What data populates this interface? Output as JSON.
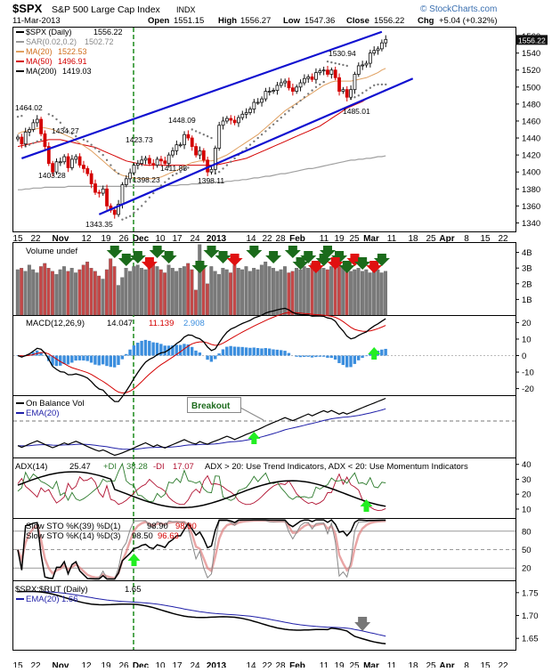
{
  "header": {
    "symbol": "$SPX",
    "name": "S&P 500 Large Cap Index",
    "exchange": "INDX",
    "credit": "© StockCharts.com",
    "date": "11-Mar-2013",
    "open_label": "Open",
    "open": "1551.15",
    "high_label": "High",
    "high": "1556.27",
    "low_label": "Low",
    "low": "1547.36",
    "close_label": "Close",
    "close": "1556.22",
    "chg_label": "Chg",
    "chg": "+5.04 (+0.32%)"
  },
  "colors": {
    "up": "#111111",
    "down": "#d40000",
    "channel": "#1010d0",
    "ma20": "#e0a060",
    "ma50": "#d40000",
    "ma200": "#a0a0a0",
    "vol_up": "#7a7a7a",
    "vol_down": "#c44848",
    "hist": "#3b8ede",
    "green": "#2e7d32",
    "bright_green": "#22ee22",
    "arrow_down": "#1b6b1b",
    "arrow_red": "#e01010",
    "ema_blue": "#1f1fa8",
    "dgreen": "#2b7a2b",
    "dred": "#b01030"
  },
  "chart_data": {
    "type": "line",
    "title": "$SPX S&P 500 Large Cap Index INDX",
    "x_axis_labels": [
      "15",
      "22",
      "Nov",
      "12",
      "19",
      "26",
      "Dec",
      "10",
      "17",
      "24",
      "2013",
      "14",
      "22",
      "28",
      "Feb",
      "11",
      "19",
      "25",
      "Mar",
      "11",
      "18",
      "25",
      "Apr",
      "8",
      "15",
      "22"
    ],
    "price_pane": {
      "legend": [
        {
          "label": "$SPX (Daily)",
          "value": "1556.22"
        },
        {
          "label": "SAR(0.02,0.2)",
          "value": "1502.72"
        },
        {
          "label": "MA(20)",
          "value": "1522.53"
        },
        {
          "label": "MA(50)",
          "value": "1496.91"
        },
        {
          "label": "MA(200)",
          "value": "1419.03"
        }
      ],
      "y_ticks": [
        1340,
        1360,
        1380,
        1400,
        1420,
        1440,
        1460,
        1480,
        1500,
        1520,
        1540,
        1560
      ],
      "ylim": [
        1330,
        1570
      ],
      "annotations": [
        "1464.02",
        "1434.27",
        "1403.28",
        "1343.35",
        "1423.73",
        "1398.23",
        "1411.88",
        "1448.09",
        "1398.11",
        "1530.94",
        "1485.01"
      ],
      "channel_upper": [
        [
          1,
          1416
        ],
        [
          94,
          1565
        ]
      ],
      "channel_lower": [
        [
          21,
          1350
        ],
        [
          102,
          1510
        ]
      ],
      "close": [
        1441,
        1433,
        1447,
        1450,
        1458,
        1462,
        1445,
        1430,
        1410,
        1400,
        1412,
        1412,
        1418,
        1405,
        1415,
        1418,
        1408,
        1404,
        1398,
        1386,
        1376,
        1375,
        1380,
        1360,
        1355,
        1350,
        1362,
        1385,
        1392,
        1399,
        1408,
        1410,
        1414,
        1416,
        1410,
        1408,
        1415,
        1413,
        1410,
        1420,
        1425,
        1432,
        1432,
        1444,
        1440,
        1430,
        1420,
        1425,
        1414,
        1400,
        1403,
        1428,
        1455,
        1460,
        1463,
        1461,
        1458,
        1464,
        1468,
        1470,
        1474,
        1482,
        1482,
        1486,
        1495,
        1495,
        1496,
        1502,
        1505,
        1507,
        1499,
        1495,
        1500,
        1505,
        1510,
        1512,
        1509,
        1517,
        1519,
        1520,
        1515,
        1520,
        1511,
        1495,
        1497,
        1488,
        1497,
        1515,
        1525,
        1526,
        1528,
        1540,
        1543,
        1545,
        1552,
        1556
      ],
      "sar": [
        1465,
        1466,
        1430,
        1432,
        1434,
        1436,
        1438,
        1440,
        1468,
        1466,
        1462,
        1458,
        1452,
        1448,
        1445,
        1442,
        1440,
        1438,
        1436,
        1432,
        1428,
        1424,
        1420,
        1414,
        1408,
        1402,
        1398,
        1344,
        1346,
        1348,
        1352,
        1356,
        1360,
        1365,
        1370,
        1375,
        1380,
        1384,
        1388,
        1392,
        1396,
        1398,
        1400,
        1403,
        1405,
        1450,
        1448,
        1446,
        1444,
        1442,
        1440,
        1398,
        1400,
        1404,
        1408,
        1412,
        1416,
        1420,
        1424,
        1428,
        1432,
        1436,
        1440,
        1444,
        1448,
        1452,
        1456,
        1460,
        1464,
        1468,
        1472,
        1476,
        1480,
        1484,
        1488,
        1492,
        1496,
        1500,
        1503,
        1506,
        1530,
        1529,
        1528,
        1527,
        1526,
        1525,
        1486,
        1488,
        1490,
        1493,
        1496,
        1499,
        1502,
        1503,
        1503,
        1503
      ],
      "ma20": [
        1445,
        1447,
        1448,
        1449,
        1450,
        1451,
        1452,
        1452,
        1451,
        1450,
        1448,
        1446,
        1444,
        1442,
        1440,
        1437,
        1434,
        1431,
        1428,
        1425,
        1421,
        1417,
        1413,
        1409,
        1405,
        1401,
        1398,
        1396,
        1395,
        1394,
        1393,
        1392,
        1392,
        1392,
        1392,
        1392,
        1393,
        1394,
        1396,
        1398,
        1400,
        1402,
        1404,
        1407,
        1409,
        1411,
        1412,
        1413,
        1413,
        1413,
        1413,
        1414,
        1416,
        1418,
        1420,
        1423,
        1426,
        1429,
        1432,
        1435,
        1438,
        1441,
        1444,
        1448,
        1452,
        1456,
        1460,
        1464,
        1468,
        1472,
        1475,
        1478,
        1481,
        1484,
        1487,
        1490,
        1493,
        1496,
        1499,
        1502,
        1504,
        1506,
        1507,
        1507,
        1507,
        1507,
        1507,
        1508,
        1509,
        1510,
        1511,
        1513,
        1515,
        1517,
        1520,
        1522
      ],
      "ma50": [
        1430,
        1431,
        1432,
        1433,
        1434,
        1435,
        1436,
        1437,
        1438,
        1438,
        1438,
        1438,
        1437,
        1436,
        1435,
        1434,
        1433,
        1432,
        1431,
        1430,
        1429,
        1427,
        1425,
        1423,
        1421,
        1419,
        1417,
        1415,
        1413,
        1412,
        1411,
        1410,
        1409,
        1408,
        1408,
        1408,
        1408,
        1408,
        1408,
        1408,
        1408,
        1408,
        1408,
        1408,
        1408,
        1408,
        1408,
        1408,
        1408,
        1408,
        1408,
        1408,
        1409,
        1410,
        1411,
        1412,
        1413,
        1414,
        1415,
        1416,
        1418,
        1420,
        1422,
        1424,
        1426,
        1428,
        1430,
        1432,
        1434,
        1436,
        1438,
        1440,
        1442,
        1444,
        1446,
        1448,
        1450,
        1452,
        1454,
        1457,
        1460,
        1463,
        1466,
        1469,
        1472,
        1475,
        1477,
        1479,
        1481,
        1483,
        1486,
        1488,
        1490,
        1492,
        1494,
        1497
      ],
      "ma200": [
        1379,
        1379,
        1380,
        1380,
        1381,
        1381,
        1381,
        1382,
        1382,
        1382,
        1382,
        1382,
        1382,
        1383,
        1383,
        1383,
        1383,
        1383,
        1383,
        1383,
        1383,
        1383,
        1383,
        1383,
        1383,
        1383,
        1383,
        1383,
        1383,
        1383,
        1383,
        1383,
        1383,
        1383,
        1383,
        1383,
        1383,
        1383,
        1384,
        1384,
        1384,
        1384,
        1385,
        1385,
        1385,
        1386,
        1386,
        1386,
        1387,
        1387,
        1387,
        1388,
        1388,
        1388,
        1389,
        1389,
        1390,
        1390,
        1391,
        1391,
        1392,
        1393,
        1393,
        1394,
        1395,
        1395,
        1396,
        1397,
        1398,
        1398,
        1399,
        1400,
        1401,
        1402,
        1403,
        1404,
        1404,
        1405,
        1406,
        1407,
        1408,
        1409,
        1410,
        1411,
        1412,
        1413,
        1414,
        1414,
        1415,
        1415,
        1416,
        1416,
        1417,
        1418,
        1418,
        1419
      ]
    },
    "volume_pane": {
      "label": "Volume undef",
      "y_ticks": [
        "1B",
        "2B",
        "3B",
        "4B"
      ],
      "ylim": [
        0,
        4.6
      ],
      "values": [
        2.9,
        3.0,
        2.8,
        3.2,
        2.9,
        2.7,
        3.1,
        3.3,
        3.0,
        2.8,
        2.6,
        2.9,
        3.1,
        2.8,
        3.0,
        2.7,
        2.9,
        3.2,
        3.4,
        3.0,
        2.8,
        2.5,
        2.3,
        2.9,
        3.6,
        3.1,
        1.9,
        2.4,
        3.0,
        2.8,
        3.1,
        3.2,
        3.0,
        2.9,
        3.5,
        3.3,
        3.1,
        2.9,
        2.7,
        3.2,
        3.0,
        2.8,
        3.0,
        3.1,
        3.3,
        2.9,
        1.6,
        4.5,
        3.0,
        2.0,
        3.1,
        2.8,
        2.6,
        3.0,
        2.9,
        2.7,
        3.2,
        3.0,
        2.9,
        3.1,
        2.8,
        3.0,
        2.9,
        3.2,
        3.4,
        3.1,
        3.0,
        2.8,
        2.9,
        3.1,
        2.7,
        2.8,
        3.0,
        2.9,
        3.1,
        3.0,
        3.3,
        3.2,
        3.1,
        3.0,
        2.9,
        3.1,
        3.2,
        3.3,
        3.1,
        3.0,
        2.8,
        2.9,
        3.0,
        2.8,
        2.9,
        2.7,
        2.8,
        2.9,
        2.7,
        2.8
      ]
    },
    "macd_pane": {
      "legend_label": "MACD(12,26,9)",
      "macd": "14.047",
      "signal": "11.139",
      "hist": "2.908",
      "y_ticks": [
        -20,
        -10,
        0,
        10,
        20
      ],
      "ylim": [
        -24,
        24
      ]
    },
    "obv_pane": {
      "legend": [
        "On Balance Vol",
        "EMA(20)"
      ],
      "annotation": "Breakout"
    },
    "adx_pane": {
      "legend_label": "ADX(14)",
      "adx": "25.47",
      "plus_di_label": "+DI",
      "plus_di": "38.28",
      "minus_di_label": "-DI",
      "minus_di": "17.07",
      "note": "ADX > 20: Use Trend Indicators, ADX < 20: Use Momentum Indicators",
      "y_ticks": [
        10,
        20,
        30,
        40
      ],
      "ylim": [
        4,
        44
      ]
    },
    "sto_pane": {
      "legend1_label": "Slow STO %K(39) %D(1)",
      "legend1_k": "98.90",
      "legend1_d": "98.90",
      "legend2_label": "Slow STO %K(14) %D(3)",
      "legend2_k": "98.50",
      "legend2_d": "96.63",
      "y_ticks": [
        20,
        50,
        80
      ],
      "ylim": [
        0,
        100
      ]
    },
    "ratio_pane": {
      "legend_label": "$SPX:$RUT (Daily)",
      "legend_value": "1.65",
      "ema_label": "EMA(20)",
      "ema_value": "1.66",
      "y_ticks": [
        1.65,
        1.7,
        1.75
      ],
      "ylim": [
        1.625,
        1.775
      ]
    }
  }
}
